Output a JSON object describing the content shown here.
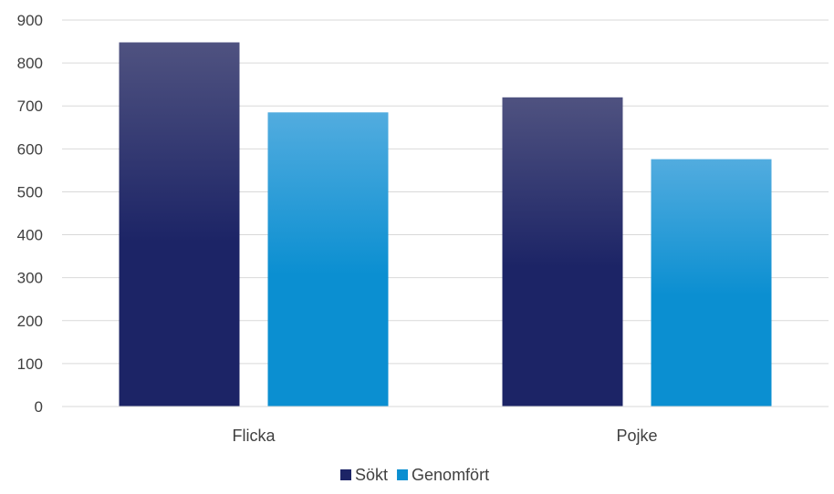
{
  "chart_data": {
    "type": "bar",
    "title": "",
    "xlabel": "",
    "ylabel": "",
    "categories": [
      "Flicka",
      "Pojke"
    ],
    "series": [
      {
        "name": "Sökt",
        "values": [
          848,
          720
        ],
        "color": "#1c2466",
        "color_top": "#4f5280"
      },
      {
        "name": "Genomfört",
        "values": [
          685,
          576
        ],
        "color": "#0b8fd1",
        "color_top": "#52acdf"
      }
    ],
    "ylim": [
      0,
      900
    ],
    "yticks": [
      0,
      100,
      200,
      300,
      400,
      500,
      600,
      700,
      800,
      900
    ],
    "grid": true,
    "legend": "bottom-center"
  }
}
